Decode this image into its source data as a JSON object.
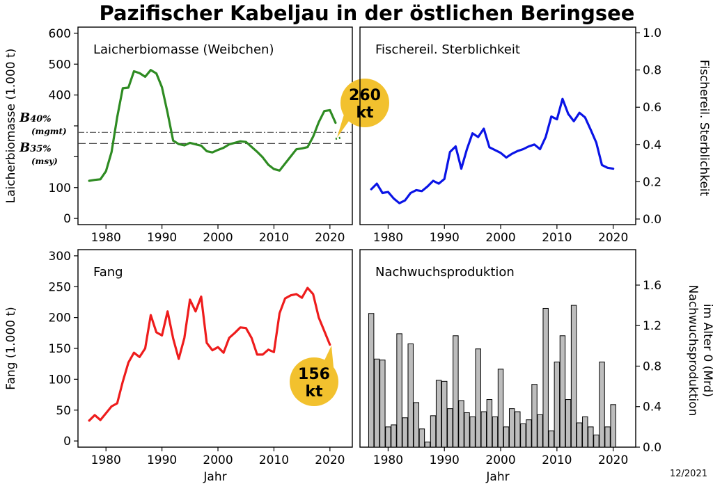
{
  "title": "Pazifischer Kabeljau in der östlichen Beringsee",
  "stamp": "12/2021",
  "callout_color": "#f2c12e",
  "chart_data": [
    {
      "type": "line",
      "panel_title": "Laicherbiomasse (Weibchen)",
      "ylabel": "Laicherbiomasse (1.000 t)",
      "xlabel": "",
      "xlim": [
        1975,
        2024
      ],
      "ylim": [
        -20,
        620
      ],
      "xticks": [
        1980,
        1990,
        2000,
        2010,
        2020
      ],
      "yticks": [
        0,
        100,
        200,
        300,
        400,
        500,
        600
      ],
      "ytick_labels": [
        "0",
        "100",
        "",
        "",
        "400",
        "500",
        "600"
      ],
      "color": "#2e8b22",
      "series": [
        {
          "x": [
            1977,
            1978,
            1979,
            1980,
            1981,
            1982,
            1983,
            1984,
            1985,
            1986,
            1987,
            1988,
            1989,
            1990,
            1991,
            1992,
            1993,
            1994,
            1995,
            1996,
            1997,
            1998,
            1999,
            2000,
            2001,
            2002,
            2003,
            2004,
            2005,
            2006,
            2007,
            2008,
            2009,
            2010,
            2011,
            2012,
            2013,
            2014,
            2015,
            2016,
            2017,
            2018,
            2019,
            2020,
            2021
          ],
          "y": [
            122,
            125,
            127,
            153,
            215,
            328,
            422,
            424,
            477,
            471,
            459,
            481,
            470,
            425,
            342,
            252,
            241,
            237,
            245,
            240,
            236,
            218,
            214,
            222,
            229,
            240,
            245,
            250,
            248,
            232,
            216,
            198,
            174,
            160,
            155,
            178,
            201,
            224,
            227,
            231,
            265,
            312,
            348,
            351,
            310
          ]
        }
      ],
      "projection": {
        "x": [
          2021,
          2022
        ],
        "y": [
          258,
          262
        ]
      },
      "reference_lines": [
        {
          "label": "B40%",
          "sublabel": "(mgmt)",
          "value": 279,
          "style": "dashdot"
        },
        {
          "label": "B35%",
          "sublabel": "(msy)",
          "value": 243,
          "style": "dashed"
        }
      ],
      "callout": {
        "line1": "260",
        "line2": "kt",
        "x": 2022,
        "y": 262
      }
    },
    {
      "type": "line",
      "panel_title": "Fischereil. Sterblichkeit",
      "ylabel": "Fischereil. Sterblichkeit",
      "xlabel": "",
      "xlim": [
        1975,
        2024
      ],
      "ylim": [
        -0.03,
        1.03
      ],
      "xticks": [
        1980,
        1990,
        2000,
        2010,
        2020
      ],
      "yticks": [
        0,
        0.2,
        0.4,
        0.6,
        0.8,
        1.0
      ],
      "ytick_labels": [
        "0.0",
        "0.2",
        "0.4",
        "0.6",
        "0.8",
        "1.0"
      ],
      "color": "#0a14e6",
      "series": [
        {
          "x": [
            1977,
            1978,
            1979,
            1980,
            1981,
            1982,
            1983,
            1984,
            1985,
            1986,
            1987,
            1988,
            1989,
            1990,
            1991,
            1992,
            1993,
            1994,
            1995,
            1996,
            1997,
            1998,
            1999,
            2000,
            2001,
            2002,
            2003,
            2004,
            2005,
            2006,
            2007,
            2008,
            2009,
            2010,
            2011,
            2012,
            2013,
            2014,
            2015,
            2016,
            2017,
            2018,
            2019,
            2020
          ],
          "y": [
            0.16,
            0.19,
            0.14,
            0.145,
            0.11,
            0.085,
            0.1,
            0.14,
            0.155,
            0.15,
            0.175,
            0.205,
            0.19,
            0.215,
            0.36,
            0.39,
            0.27,
            0.375,
            0.46,
            0.44,
            0.485,
            0.385,
            0.37,
            0.355,
            0.33,
            0.35,
            0.365,
            0.375,
            0.39,
            0.4,
            0.375,
            0.44,
            0.55,
            0.535,
            0.645,
            0.565,
            0.525,
            0.57,
            0.545,
            0.48,
            0.41,
            0.29,
            0.275,
            0.27
          ]
        }
      ]
    },
    {
      "type": "line",
      "panel_title": "Fang",
      "ylabel": "Fang (1.000 t)",
      "xlabel": "Jahr",
      "xlim": [
        1975,
        2024
      ],
      "ylim": [
        -10,
        310
      ],
      "xticks": [
        1980,
        1990,
        2000,
        2010,
        2020
      ],
      "yticks": [
        0,
        50,
        100,
        150,
        200,
        250,
        300
      ],
      "ytick_labels": [
        "0",
        "50",
        "100",
        "150",
        "200",
        "250",
        "300"
      ],
      "color": "#ee1c1c",
      "series": [
        {
          "x": [
            1977,
            1978,
            1979,
            1980,
            1981,
            1982,
            1983,
            1984,
            1985,
            1986,
            1987,
            1988,
            1989,
            1990,
            1991,
            1992,
            1993,
            1994,
            1995,
            1996,
            1997,
            1998,
            1999,
            2000,
            2001,
            2002,
            2003,
            2004,
            2005,
            2006,
            2007,
            2008,
            2009,
            2010,
            2011,
            2012,
            2013,
            2014,
            2015,
            2016,
            2017,
            2018,
            2019,
            2020
          ],
          "y": [
            33,
            42,
            34,
            45,
            56,
            61,
            96,
            127,
            143,
            136,
            150,
            204,
            176,
            171,
            210,
            166,
            133,
            167,
            229,
            210,
            234,
            159,
            147,
            152,
            143,
            167,
            175,
            184,
            183,
            167,
            140,
            140,
            148,
            144,
            207,
            231,
            236,
            238,
            232,
            248,
            238,
            200,
            178,
            156
          ]
        }
      ],
      "callout": {
        "line1": "156",
        "line2": "kt",
        "x": 2020,
        "y": 156
      }
    },
    {
      "type": "bar",
      "panel_title": "Nachwuchsproduktion",
      "ylabel": "Nachwuchsproduktion im Alter 0 (Mrd)",
      "xlabel": "Jahr",
      "xlim": [
        1975,
        2024
      ],
      "ylim": [
        0,
        1.95
      ],
      "xticks": [
        1980,
        1990,
        2000,
        2010,
        2020
      ],
      "yticks": [
        0,
        0.4,
        0.8,
        1.2,
        1.6
      ],
      "ytick_labels": [
        "0.0",
        "0.4",
        "0.8",
        "1.2",
        "1.6"
      ],
      "color": "#bdbdbd",
      "series": [
        {
          "x": [
            1977,
            1978,
            1979,
            1980,
            1981,
            1982,
            1983,
            1984,
            1985,
            1986,
            1987,
            1988,
            1989,
            1990,
            1991,
            1992,
            1993,
            1994,
            1995,
            1996,
            1997,
            1998,
            1999,
            2000,
            2001,
            2002,
            2003,
            2004,
            2005,
            2006,
            2007,
            2008,
            2009,
            2010,
            2011,
            2012,
            2013,
            2014,
            2015,
            2016,
            2017,
            2018,
            2019,
            2020
          ],
          "y": [
            1.32,
            0.87,
            0.86,
            0.2,
            0.22,
            1.12,
            0.29,
            1.02,
            0.44,
            0.18,
            0.05,
            0.31,
            0.66,
            0.65,
            0.38,
            1.1,
            0.46,
            0.34,
            0.3,
            0.97,
            0.35,
            0.47,
            0.3,
            0.77,
            0.2,
            0.38,
            0.35,
            0.23,
            0.27,
            0.62,
            0.32,
            1.37,
            0.16,
            0.84,
            1.1,
            0.47,
            1.4,
            0.24,
            0.3,
            0.2,
            0.12,
            0.84,
            0.2,
            0.42
          ]
        }
      ]
    }
  ]
}
